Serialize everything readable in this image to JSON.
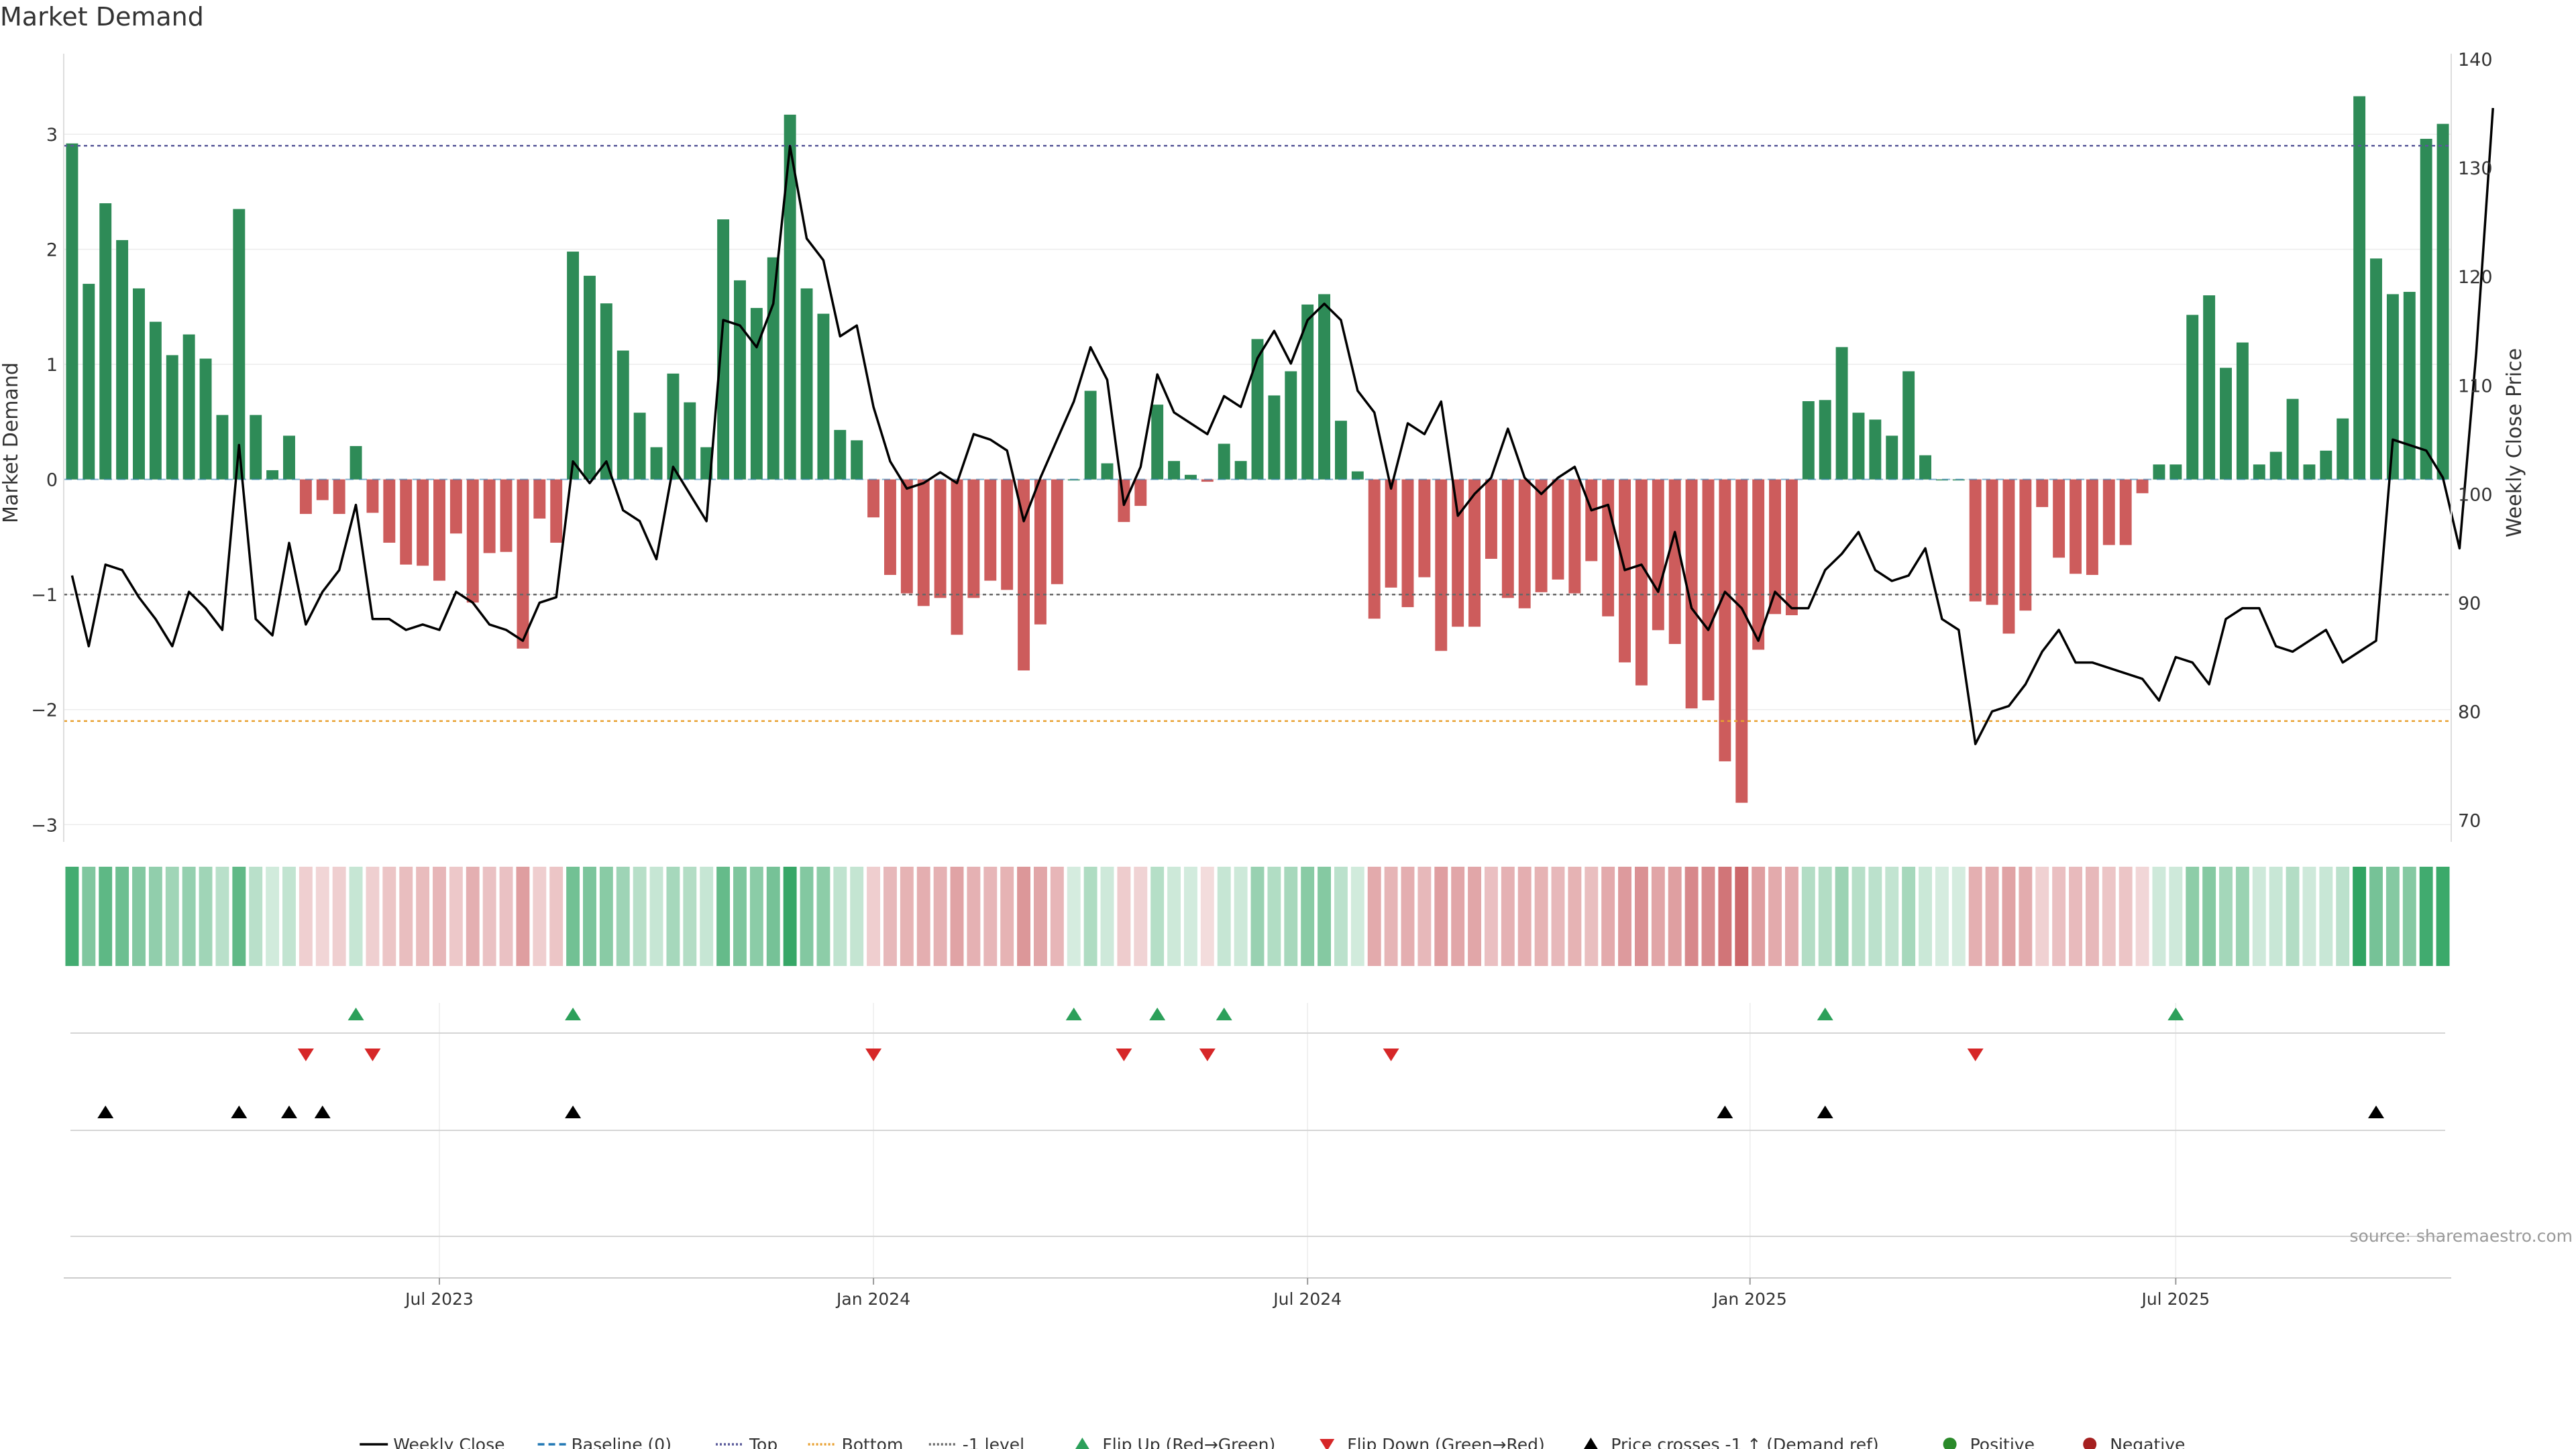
{
  "chart_data": {
    "type": "bar",
    "title": "Market Demand",
    "ylabel": "Market Demand",
    "y2label": "Weekly Close Price",
    "ylim": [
      -3.15,
      3.7
    ],
    "y2lim": [
      68,
      140.5
    ],
    "yticks": [
      "3",
      "2",
      "1",
      "0",
      "−1",
      "−2",
      "−3"
    ],
    "y2ticks": [
      "140",
      "130",
      "120",
      "110",
      "100",
      "90",
      "80",
      "70"
    ],
    "x_dates": [
      "Jul 2023",
      "Jan 2024",
      "Jul 2024",
      "Jan 2025",
      "Jul 2025"
    ],
    "x_date_weeks": [
      22,
      48,
      74,
      100.5,
      126
    ],
    "levels": {
      "top": 2.9,
      "bottom": -2.1,
      "minus_one": -1,
      "baseline": 0
    },
    "demand": [
      2.92,
      1.7,
      2.4,
      2.08,
      1.66,
      1.37,
      1.08,
      1.26,
      1.05,
      0.56,
      2.35,
      0.56,
      0.08,
      0.38,
      -0.3,
      -0.18,
      -0.3,
      0.29,
      -0.29,
      -0.55,
      -0.74,
      -0.75,
      -0.88,
      -0.47,
      -1.07,
      -0.64,
      -0.63,
      -1.47,
      -0.34,
      -0.55,
      1.98,
      1.77,
      1.53,
      1.12,
      0.58,
      0.28,
      0.92,
      0.67,
      0.28,
      2.26,
      1.73,
      1.49,
      1.93,
      3.17,
      1.66,
      1.44,
      0.43,
      0.34,
      -0.33,
      -0.83,
      -0.99,
      -1.1,
      -1.03,
      -1.35,
      -1.03,
      -0.88,
      -0.96,
      -1.66,
      -1.26,
      -0.91,
      0.0,
      0.77,
      0.14,
      -0.37,
      -0.23,
      0.65,
      0.16,
      0.04,
      -0.02,
      0.31,
      0.16,
      1.22,
      0.73,
      0.94,
      1.52,
      1.61,
      0.51,
      0.07,
      -1.21,
      -0.94,
      -1.11,
      -0.85,
      -1.49,
      -1.28,
      -1.28,
      -0.69,
      -1.03,
      -1.12,
      -0.98,
      -0.87,
      -0.99,
      -0.71,
      -1.19,
      -1.59,
      -1.79,
      -1.31,
      -1.43,
      -1.99,
      -1.92,
      -2.45,
      -2.81,
      -1.48,
      -1.17,
      -1.18,
      0.68,
      0.69,
      1.15,
      0.58,
      0.52,
      0.38,
      0.94,
      0.21,
      0.0,
      0.0,
      -1.06,
      -1.09,
      -1.34,
      -1.14,
      -0.24,
      -0.68,
      -0.82,
      -0.83,
      -0.57,
      -0.57,
      -0.12,
      0.13,
      0.13,
      1.43,
      1.6,
      0.97,
      1.19,
      0.13,
      0.24,
      0.7,
      0.13,
      0.25,
      0.53,
      3.33,
      1.92,
      1.61,
      1.63,
      2.96,
      3.09
    ],
    "price": [
      92.5,
      86,
      93.5,
      93,
      90.5,
      88.5,
      86,
      91,
      89.5,
      87.5,
      104.5,
      88.5,
      87,
      95.5,
      88,
      91,
      93,
      99,
      88.5,
      88.5,
      87.5,
      88,
      87.5,
      91,
      90,
      88,
      87.5,
      86.5,
      90,
      90.5,
      103,
      101,
      103,
      98.5,
      97.5,
      94,
      102.5,
      100,
      97.5,
      116,
      115.5,
      113.5,
      117.5,
      132,
      123.5,
      121.5,
      114.5,
      115.5,
      108,
      103,
      100.5,
      101,
      102,
      101,
      105.5,
      105,
      104,
      97.5,
      101.5,
      105,
      108.5,
      113.5,
      110.5,
      99,
      102.5,
      111,
      107.5,
      106.5,
      105.5,
      109,
      108,
      112.5,
      115,
      112,
      116,
      117.5,
      116,
      109.5,
      107.5,
      100.5,
      106.5,
      105.5,
      108.5,
      98,
      100,
      101.5,
      106,
      101.5,
      100,
      101.5,
      102.5,
      98.5,
      99,
      93,
      93.5,
      91,
      96.5,
      89.5,
      87.5,
      91,
      89.5,
      86.5,
      91,
      89.5,
      89.5,
      93,
      94.5,
      96.5,
      93,
      92,
      92.5,
      95,
      88.5,
      87.5,
      77,
      80,
      80.5,
      82.5,
      85.5,
      87.5,
      84.5,
      84.5,
      84,
      83.5,
      83,
      81,
      85,
      84.5,
      82.5,
      88.5,
      89.5,
      89.5,
      86,
      85.5,
      86.5,
      87.5,
      84.5,
      85.5,
      86.5,
      105,
      104.5,
      104,
      101.5,
      95,
      113,
      135.5
    ],
    "flip_up_weeks": [
      17,
      30,
      60,
      65,
      69,
      105,
      126
    ],
    "flip_down_weeks": [
      14,
      18,
      48,
      63,
      68,
      79,
      114
    ],
    "cross_weeks": [
      2,
      10,
      13,
      15,
      30,
      99,
      105,
      138
    ],
    "legend": [
      {
        "label": "Weekly Close",
        "kind": "line",
        "color": "#000000",
        "dash": ""
      },
      {
        "label": "Baseline (0)",
        "kind": "line",
        "color": "#1f77b4",
        "dash": "10,6"
      },
      {
        "label": "Top",
        "kind": "line",
        "color": "#5a5a9a",
        "dash": "3,3"
      },
      {
        "label": "Bottom",
        "kind": "line",
        "color": "#e8a030",
        "dash": "3,3"
      },
      {
        "label": "-1 level",
        "kind": "line",
        "color": "#666666",
        "dash": "3,3"
      },
      {
        "label": "Flip Up (Red→Green)",
        "kind": "tri-up",
        "color": "#2ca05a"
      },
      {
        "label": "Flip Down (Green→Red)",
        "kind": "tri-down",
        "color": "#d62728"
      },
      {
        "label": "Price crosses -1 ↑ (Demand ref)",
        "kind": "tri-up",
        "color": "#000000"
      },
      {
        "label": "Positive",
        "kind": "dot",
        "color": "#2a8a2a"
      },
      {
        "label": "Negative",
        "kind": "dot",
        "color": "#a52020"
      }
    ],
    "colors": {
      "positive": "#2e8b57",
      "negative": "#cd5c5c",
      "price": "#000000"
    },
    "source": "source: sharemaestro.com"
  }
}
